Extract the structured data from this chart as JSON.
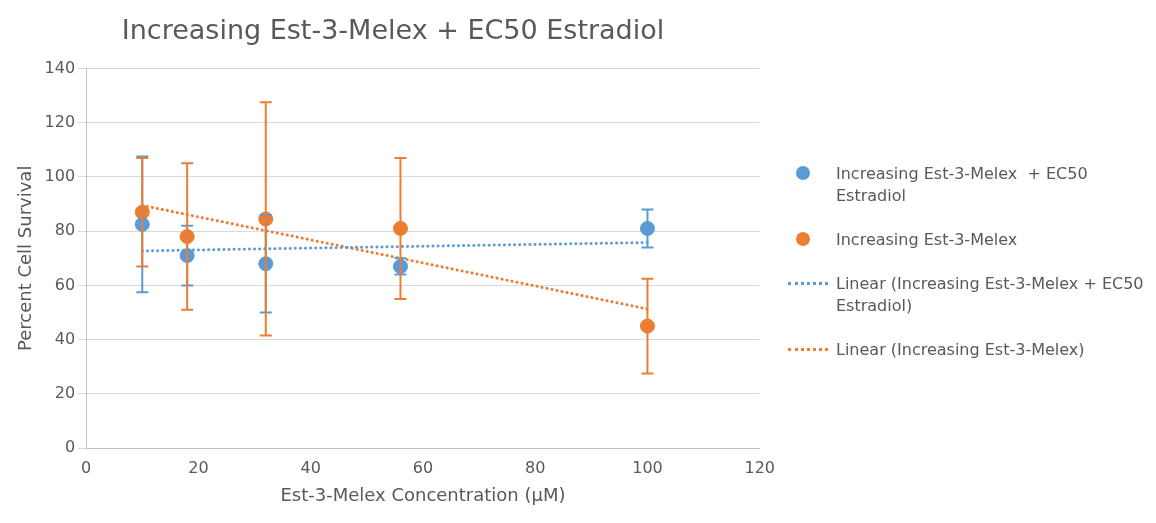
{
  "chart_data": {
    "type": "scatter",
    "title": "Increasing Est-3-Melex + EC50 Estradiol",
    "xlabel": "Est-3-Melex Concentration (µM)",
    "ylabel": "Percent Cell Survival",
    "x": [
      10,
      18,
      32,
      56,
      100
    ],
    "series": [
      {
        "name": "Increasing Est-3-Melex  + EC50 Estradiol",
        "color": "#5b9bd5",
        "type": "scatter",
        "marker": "circle",
        "values": [
          82.5,
          71,
          68,
          67,
          81
        ],
        "errors": [
          25,
          11,
          18,
          3,
          7
        ]
      },
      {
        "name": "Increasing Est-3-Melex",
        "color": "#ed7d31",
        "type": "scatter",
        "marker": "circle",
        "values": [
          87,
          78,
          84.5,
          81,
          45
        ],
        "errors": [
          20,
          27,
          43,
          26,
          17.5
        ]
      },
      {
        "name": "Linear (Increasing Est-3-Melex + EC50 Estradiol)",
        "color": "#5b9bd5",
        "type": "line",
        "marker": "none",
        "line_style": "dotted",
        "values": [
          72.7,
          73.0,
          73.5,
          74.3,
          75.8
        ]
      },
      {
        "name": "Linear (Increasing Est-3-Melex)",
        "color": "#ed7d31",
        "type": "line",
        "marker": "none",
        "line_style": "dotted",
        "values": [
          89.5,
          86.1,
          80.2,
          70.0,
          51.3
        ]
      }
    ],
    "xlim": [
      0,
      120
    ],
    "xticks": [
      0,
      20,
      40,
      60,
      80,
      100,
      120
    ],
    "ylim": [
      0,
      140
    ],
    "yticks": [
      0,
      20,
      40,
      60,
      80,
      100,
      120,
      140
    ],
    "grid": "y",
    "legend": "right"
  }
}
